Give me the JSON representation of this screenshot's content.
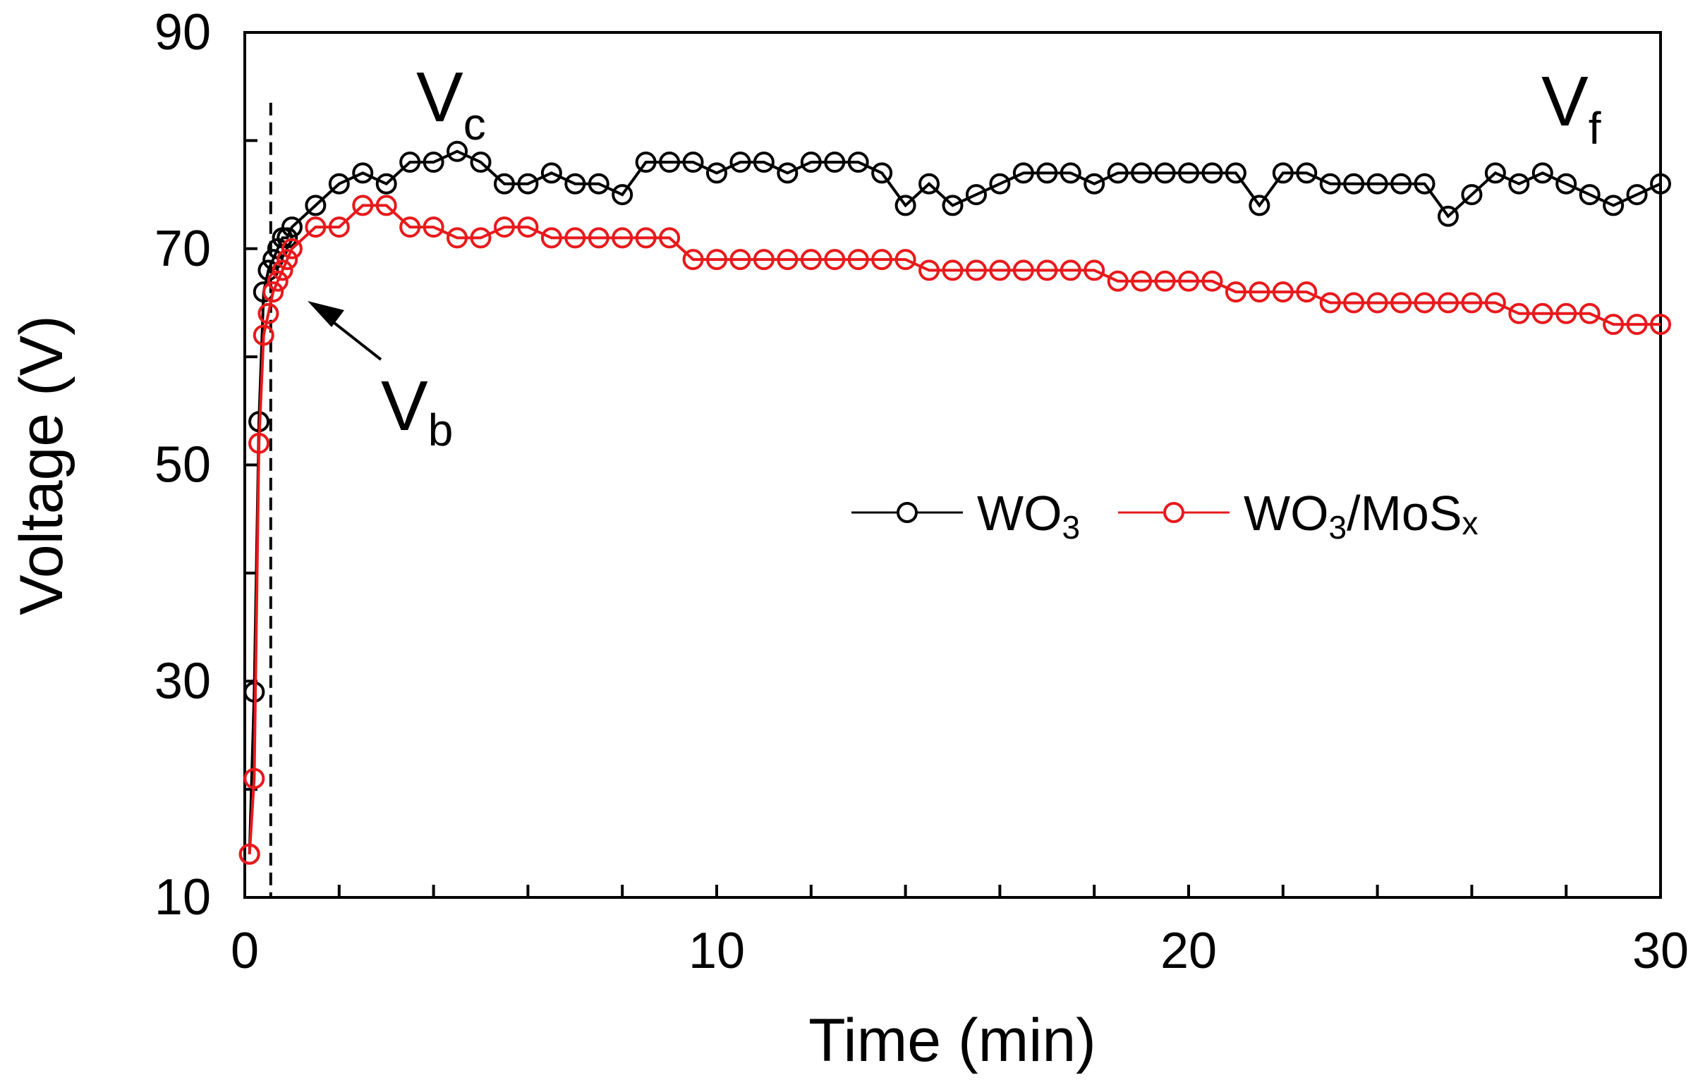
{
  "chart_data": {
    "type": "line",
    "xlabel": "Time (min)",
    "ylabel": "Voltage (V)",
    "xlim": [
      0,
      30
    ],
    "ylim": [
      10,
      90
    ],
    "x_ticks": [
      0,
      10,
      20,
      30
    ],
    "y_ticks": [
      10,
      30,
      50,
      70,
      90
    ],
    "x_minor_step": 2,
    "y_minor_step": 10,
    "grid": false,
    "legend_position": "center-right",
    "series": [
      {
        "name": "WO3",
        "color": "#000000",
        "marker": "open-circle",
        "x": [
          0.1,
          0.2,
          0.3,
          0.4,
          0.5,
          0.6,
          0.7,
          0.8,
          0.9,
          1.0,
          1.5,
          2.0,
          2.5,
          3.0,
          3.5,
          4.0,
          4.5,
          5.0,
          5.5,
          6.0,
          6.5,
          7.0,
          7.5,
          8.0,
          8.5,
          9.0,
          9.5,
          10.0,
          10.5,
          11.0,
          11.5,
          12.0,
          12.5,
          13.0,
          13.5,
          14.0,
          14.5,
          15.0,
          15.5,
          16.0,
          16.5,
          17.0,
          17.5,
          18.0,
          18.5,
          19.0,
          19.5,
          20.0,
          20.5,
          21.0,
          21.5,
          22.0,
          22.5,
          23.0,
          23.5,
          24.0,
          24.5,
          25.0,
          25.5,
          26.0,
          26.5,
          27.0,
          27.5,
          28.0,
          28.5,
          29.0,
          29.5,
          30.0
        ],
        "values": [
          14,
          29,
          54,
          66,
          68,
          69,
          70,
          71,
          71,
          72,
          74,
          76,
          77,
          76,
          78,
          78,
          79,
          78,
          76,
          76,
          77,
          76,
          76,
          75,
          78,
          78,
          78,
          77,
          78,
          78,
          77,
          78,
          78,
          78,
          77,
          74,
          76,
          74,
          75,
          76,
          77,
          77,
          77,
          76,
          77,
          77,
          77,
          77,
          77,
          77,
          74,
          77,
          77,
          76,
          76,
          76,
          76,
          76,
          73,
          75,
          77,
          76,
          77,
          76,
          75,
          74,
          75,
          76
        ]
      },
      {
        "name": "WO3/MoSx",
        "color": "#e8191c",
        "marker": "open-circle",
        "x": [
          0.1,
          0.2,
          0.3,
          0.4,
          0.5,
          0.6,
          0.7,
          0.8,
          0.9,
          1.0,
          1.5,
          2.0,
          2.5,
          3.0,
          3.5,
          4.0,
          4.5,
          5.0,
          5.5,
          6.0,
          6.5,
          7.0,
          7.5,
          8.0,
          8.5,
          9.0,
          9.5,
          10.0,
          10.5,
          11.0,
          11.5,
          12.0,
          12.5,
          13.0,
          13.5,
          14.0,
          14.5,
          15.0,
          15.5,
          16.0,
          16.5,
          17.0,
          17.5,
          18.0,
          18.5,
          19.0,
          19.5,
          20.0,
          20.5,
          21.0,
          21.5,
          22.0,
          22.5,
          23.0,
          23.5,
          24.0,
          24.5,
          25.0,
          25.5,
          26.0,
          26.5,
          27.0,
          27.5,
          28.0,
          28.5,
          29.0,
          29.5,
          30.0
        ],
        "values": [
          14,
          21,
          52,
          62,
          64,
          66,
          67,
          68,
          69,
          70,
          72,
          72,
          74,
          74,
          72,
          72,
          71,
          71,
          72,
          72,
          71,
          71,
          71,
          71,
          71,
          71,
          69,
          69,
          69,
          69,
          69,
          69,
          69,
          69,
          69,
          69,
          68,
          68,
          68,
          68,
          68,
          68,
          68,
          68,
          67,
          67,
          67,
          67,
          67,
          66,
          66,
          66,
          66,
          65,
          65,
          65,
          65,
          65,
          65,
          65,
          65,
          64,
          64,
          64,
          64,
          63,
          63,
          63
        ]
      }
    ],
    "annotations": {
      "vc": {
        "main": "V",
        "sub": "c"
      },
      "vf": {
        "main": "V",
        "sub": "f"
      },
      "vb": {
        "main": "V",
        "sub": "b"
      },
      "breakdown_time": 0.55,
      "breakdown_line_top": 83.5
    }
  },
  "legend": {
    "wo3": {
      "main": "WO",
      "sub": "3",
      "tail": ""
    },
    "wo3mosx": {
      "main": "WO",
      "sub": "3",
      "mid": "/MoS",
      "sub2": "x"
    }
  }
}
